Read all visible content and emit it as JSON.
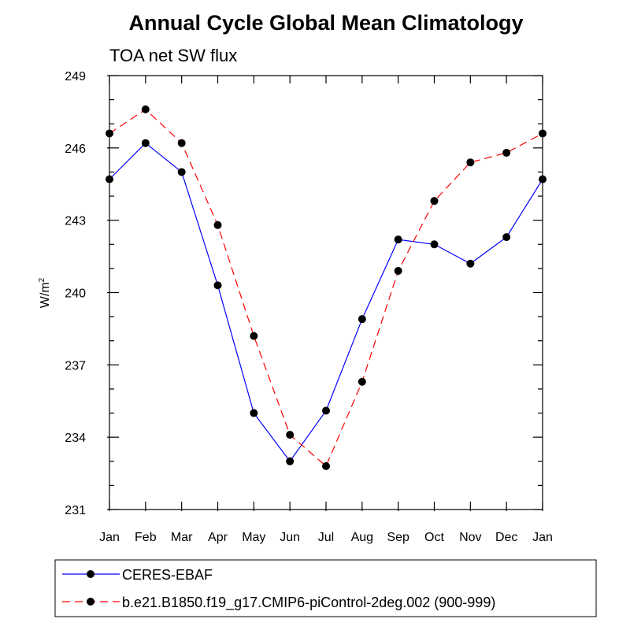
{
  "chart_data": {
    "type": "line",
    "title": "Annual Cycle Global Mean Climatology",
    "subtitle": "TOA net SW flux",
    "ylabel": "W/m",
    "ylabel_superscript": "2",
    "xlabel": "",
    "categories": [
      "Jan",
      "Feb",
      "Mar",
      "Apr",
      "May",
      "Jun",
      "Jul",
      "Aug",
      "Sep",
      "Oct",
      "Nov",
      "Dec",
      "Jan"
    ],
    "ylim": [
      231,
      249
    ],
    "yticks": [
      "231",
      "234",
      "237",
      "240",
      "243",
      "246",
      "249"
    ],
    "grid": false,
    "legend_position": "bottom",
    "series": [
      {
        "name": "CERES-EBAF",
        "color": "#0000ff",
        "line_style": "solid",
        "marker": "filled-circle",
        "values": [
          244.7,
          246.2,
          245.0,
          240.3,
          235.0,
          233.0,
          235.1,
          238.9,
          242.2,
          242.0,
          241.2,
          242.3,
          244.7
        ]
      },
      {
        "name": "b.e21.B1850.f19_g17.CMIP6-piControl-2deg.002 (900-999)",
        "color": "#ff0000",
        "line_style": "dashed",
        "marker": "filled-circle",
        "values": [
          246.6,
          247.6,
          246.2,
          242.8,
          238.2,
          234.1,
          232.8,
          236.3,
          240.9,
          243.8,
          245.4,
          245.8,
          246.6
        ]
      }
    ]
  }
}
